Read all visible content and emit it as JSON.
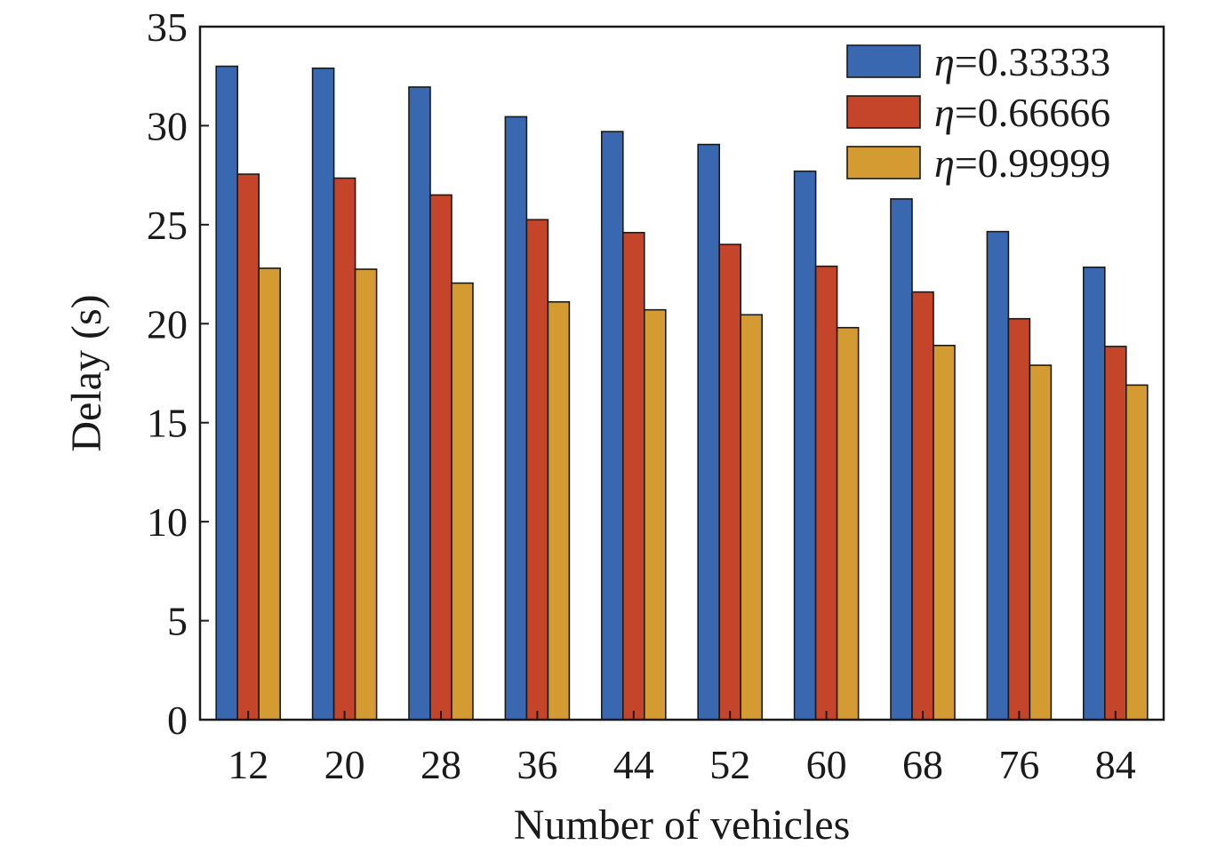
{
  "chart_data": {
    "type": "bar",
    "xlabel": "Number of vehicles",
    "ylabel": "Delay (s)",
    "ylim": [
      0,
      35
    ],
    "yticks": [
      0,
      5,
      10,
      15,
      20,
      25,
      30,
      35
    ],
    "categories": [
      "12",
      "20",
      "28",
      "36",
      "44",
      "52",
      "60",
      "68",
      "76",
      "84"
    ],
    "series": [
      {
        "name": "=0.33333",
        "name_symbol": "η",
        "color": "#3967b0",
        "values": [
          33.0,
          32.9,
          31.95,
          30.45,
          29.7,
          29.05,
          27.7,
          26.3,
          24.65,
          22.85
        ]
      },
      {
        "name": "=0.66666",
        "name_symbol": "η",
        "color": "#c4452a",
        "values": [
          27.55,
          27.35,
          26.5,
          25.25,
          24.6,
          24.0,
          22.9,
          21.6,
          20.25,
          18.85
        ]
      },
      {
        "name": "=0.99999",
        "name_symbol": "η",
        "color": "#d39b31",
        "values": [
          22.8,
          22.75,
          22.05,
          21.1,
          20.7,
          20.45,
          19.8,
          18.9,
          17.9,
          16.9
        ]
      }
    ],
    "legend": {
      "position": "top-right"
    },
    "grid": false
  }
}
